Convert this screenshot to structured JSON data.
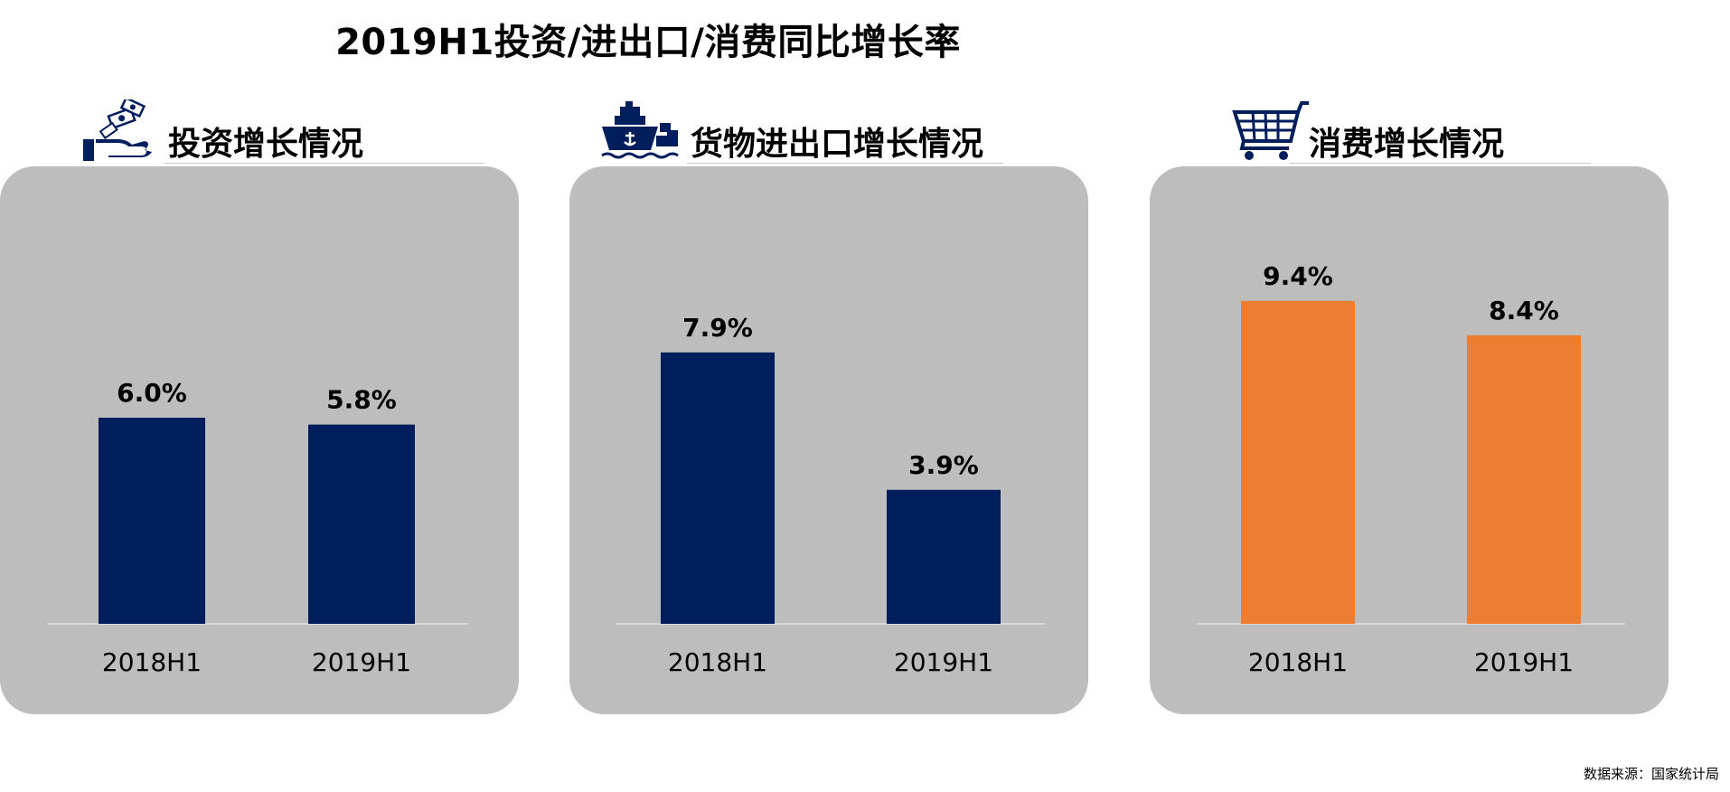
{
  "title": "2019H1投资/进出口/消费同比增长率",
  "source": "数据来源：国家统计局",
  "colors": {
    "panel_bg": "#bdbdbd",
    "navy": "#001d5c",
    "orange": "#ed7d31",
    "axis": "#e0e0e0"
  },
  "sections": [
    {
      "label": "投资增长情况",
      "icon": "money-hand-icon"
    },
    {
      "label": "货物进出口增长情况",
      "icon": "cargo-ship-icon"
    },
    {
      "label": "消费增长情况",
      "icon": "shopping-cart-icon"
    }
  ],
  "chart_data": [
    {
      "type": "bar",
      "categories": [
        "2018H1",
        "2019H1"
      ],
      "values": [
        6.0,
        5.8
      ],
      "data_labels": [
        "6.0%",
        "5.8%"
      ],
      "color": "#001d5c",
      "ylim": [
        0,
        10
      ]
    },
    {
      "type": "bar",
      "categories": [
        "2018H1",
        "2019H1"
      ],
      "values": [
        7.9,
        3.9
      ],
      "data_labels": [
        "7.9%",
        "3.9%"
      ],
      "color": "#001d5c",
      "ylim": [
        0,
        10
      ]
    },
    {
      "type": "bar",
      "categories": [
        "2018H1",
        "2019H1"
      ],
      "values": [
        9.4,
        8.4
      ],
      "data_labels": [
        "9.4%",
        "8.4%"
      ],
      "color": "#ed7d31",
      "ylim": [
        0,
        10
      ]
    }
  ]
}
